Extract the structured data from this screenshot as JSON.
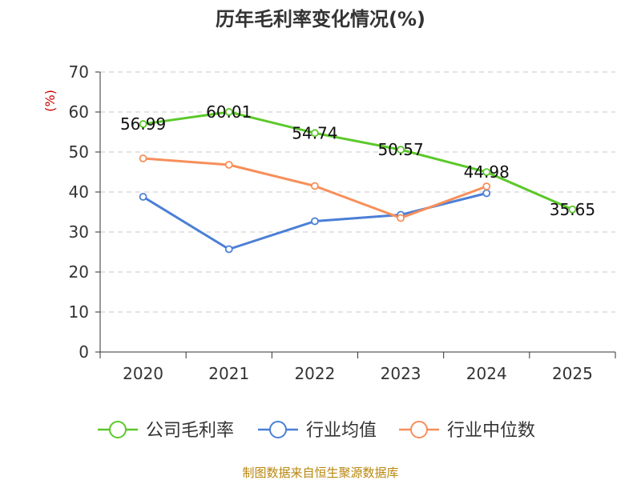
{
  "chart_data": {
    "type": "line",
    "title": "历年毛利率变化情况(%)",
    "ylabel": "(%)",
    "xlabel": "",
    "categories": [
      "2020",
      "2021",
      "2022",
      "2023",
      "2024",
      "2025"
    ],
    "ylim": [
      0,
      70
    ],
    "yticks": [
      0,
      10,
      20,
      30,
      40,
      50,
      60,
      70
    ],
    "grid": true,
    "legend_position": "bottom",
    "series": [
      {
        "name": "公司毛利率",
        "color": "#5cc82a",
        "values": [
          56.99,
          60.01,
          54.74,
          50.57,
          44.98,
          35.65
        ],
        "labels": [
          "56.99",
          "60.01",
          "54.74",
          "50.57",
          "44.98",
          "35.65"
        ]
      },
      {
        "name": "行业均值",
        "color": "#4b7fd6",
        "values": [
          38.8,
          25.7,
          32.7,
          34.3,
          39.7,
          null
        ]
      },
      {
        "name": "行业中位数",
        "color": "#f78f5a",
        "values": [
          48.4,
          46.8,
          41.5,
          33.5,
          41.4,
          null
        ]
      }
    ],
    "source": "制图数据来自恒生聚源数据库"
  }
}
